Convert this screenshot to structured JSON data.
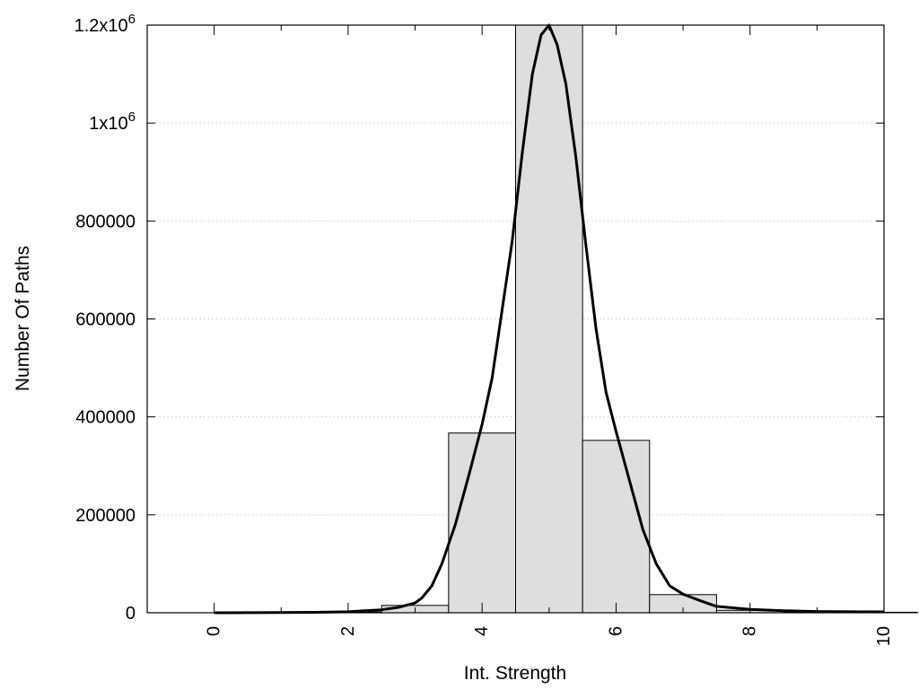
{
  "chart_data": {
    "type": "bar",
    "xlabel": "Int. Strength",
    "ylabel": "Number Of Paths",
    "xlim": [
      -1,
      10
    ],
    "ylim": [
      0,
      1200000
    ],
    "grid": true,
    "x_ticks": [
      0,
      2,
      4,
      6,
      8,
      10
    ],
    "x_tick_labels": [
      "0",
      "2",
      "4",
      "6",
      "8",
      "10"
    ],
    "y_ticks": [
      0,
      200000,
      400000,
      600000,
      800000,
      1000000,
      1200000
    ],
    "y_tick_labels": [
      {
        "text": "0"
      },
      {
        "text": "200000"
      },
      {
        "text": "400000"
      },
      {
        "text": "600000"
      },
      {
        "text": "800000"
      },
      {
        "text": "1x10",
        "sup": "6"
      },
      {
        "text": "1.2x10",
        "sup": "6"
      }
    ],
    "bar_fill": "#dedede",
    "bar_stroke": "#000000",
    "bars": [
      {
        "x": 0,
        "value": 0
      },
      {
        "x": 1,
        "value": 500
      },
      {
        "x": 2,
        "value": 1500
      },
      {
        "x": 3,
        "value": 15000
      },
      {
        "x": 4,
        "value": 367000
      },
      {
        "x": 5,
        "value": 1200000
      },
      {
        "x": 6,
        "value": 352000
      },
      {
        "x": 7,
        "value": 37000
      },
      {
        "x": 8,
        "value": 5000
      },
      {
        "x": 9,
        "value": 1500
      },
      {
        "x": 10,
        "value": 1000
      }
    ],
    "curve": {
      "type": "line",
      "color": "#000000",
      "points": [
        [
          0,
          0
        ],
        [
          1,
          400
        ],
        [
          1.5,
          900
        ],
        [
          2,
          2000
        ],
        [
          2.25,
          4000
        ],
        [
          2.5,
          6000
        ],
        [
          2.75,
          11000
        ],
        [
          3,
          20000
        ],
        [
          3.1,
          30000
        ],
        [
          3.25,
          55000
        ],
        [
          3.4,
          100000
        ],
        [
          3.6,
          180000
        ],
        [
          3.8,
          280000
        ],
        [
          4,
          385000
        ],
        [
          4.15,
          480000
        ],
        [
          4.3,
          620000
        ],
        [
          4.45,
          760000
        ],
        [
          4.6,
          940000
        ],
        [
          4.75,
          1100000
        ],
        [
          4.88,
          1180000
        ],
        [
          5,
          1200000
        ],
        [
          5.12,
          1160000
        ],
        [
          5.25,
          1080000
        ],
        [
          5.4,
          930000
        ],
        [
          5.55,
          750000
        ],
        [
          5.7,
          580000
        ],
        [
          5.85,
          450000
        ],
        [
          6,
          370000
        ],
        [
          6.2,
          270000
        ],
        [
          6.4,
          170000
        ],
        [
          6.6,
          100000
        ],
        [
          6.8,
          55000
        ],
        [
          7,
          38000
        ],
        [
          7.25,
          25000
        ],
        [
          7.5,
          13000
        ],
        [
          8,
          7000
        ],
        [
          8.5,
          4000
        ],
        [
          9,
          2500
        ],
        [
          9.5,
          2000
        ],
        [
          10,
          1800
        ]
      ]
    }
  }
}
